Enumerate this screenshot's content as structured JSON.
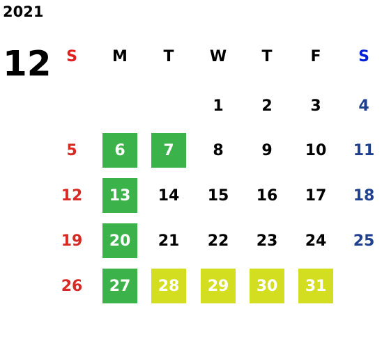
{
  "calendar": {
    "year": "2021",
    "month": "12",
    "weekdays": [
      "S",
      "M",
      "T",
      "W",
      "T",
      "F",
      "S"
    ],
    "weekday_colors": [
      "#e0201e",
      "#000000",
      "#000000",
      "#000000",
      "#000000",
      "#000000",
      "#0020d8"
    ],
    "day_colors": [
      "#d82a24",
      "#000000",
      "#000000",
      "#000000",
      "#000000",
      "#000000",
      "#1f3f8f"
    ],
    "weeks": [
      [
        null,
        null,
        null,
        1,
        2,
        3,
        4
      ],
      [
        5,
        6,
        7,
        8,
        9,
        10,
        11
      ],
      [
        12,
        13,
        14,
        15,
        16,
        17,
        18
      ],
      [
        19,
        20,
        21,
        22,
        23,
        24,
        25
      ],
      [
        26,
        27,
        28,
        29,
        30,
        31,
        null
      ]
    ],
    "highlights": [
      {
        "color": "#3cb34a",
        "days": [
          6,
          7,
          13,
          20,
          27
        ]
      },
      {
        "color": "#d4de20",
        "days": [
          28,
          29,
          30,
          31
        ]
      }
    ]
  }
}
